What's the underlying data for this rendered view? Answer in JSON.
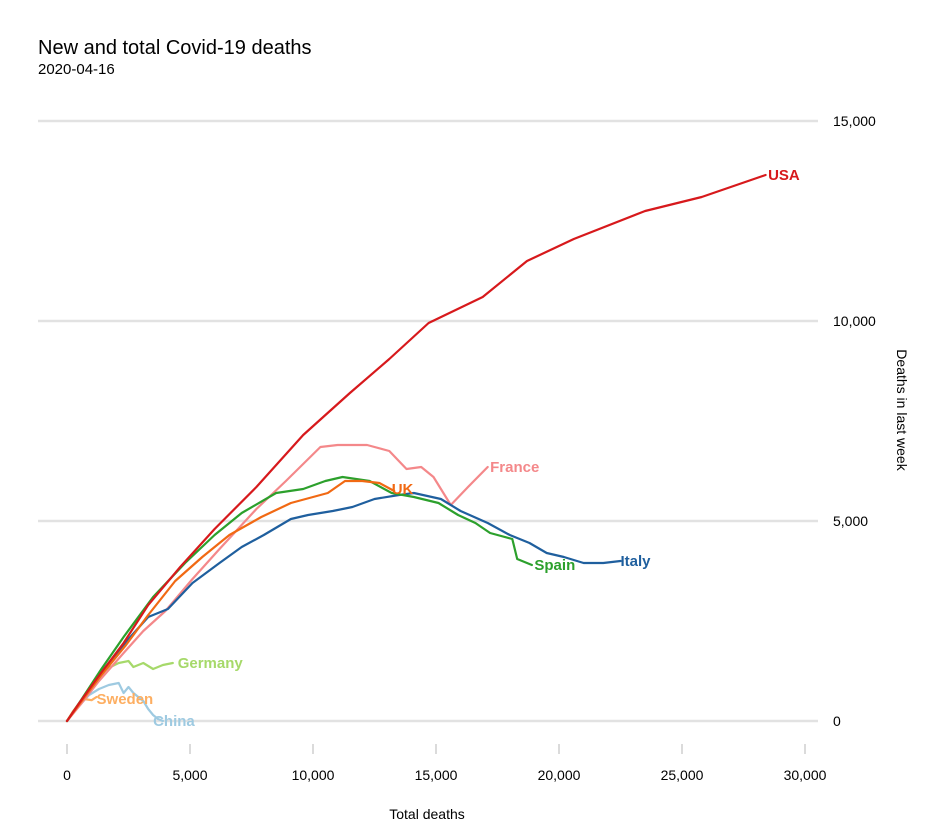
{
  "chart_data": {
    "type": "line",
    "title": "New and total Covid-19 deaths",
    "subtitle": "2020-04-16",
    "xlabel": "Total deaths",
    "ylabel": "Deaths in last week",
    "xlim": [
      -1200,
      30500
    ],
    "ylim": [
      -300,
      15000
    ],
    "x_ticks": [
      0,
      5000,
      10000,
      15000,
      20000,
      25000,
      30000
    ],
    "x_tick_labels": [
      "0",
      "5,000",
      "10,000",
      "15,000",
      "20,000",
      "25,000",
      "30,000"
    ],
    "y_ticks": [
      0,
      5000,
      10000,
      15000
    ],
    "y_tick_labels": [
      "0",
      "5,000",
      "10,000",
      "15,000"
    ],
    "y_axis_side": "right",
    "grid": "horizontal",
    "legend": "direct-labels",
    "series": [
      {
        "name": "USA",
        "color": "#d7191c",
        "points": [
          [
            0,
            0
          ],
          [
            500,
            450
          ],
          [
            1200,
            1050
          ],
          [
            2300,
            1950
          ],
          [
            3300,
            2900
          ],
          [
            4600,
            3850
          ],
          [
            6000,
            4800
          ],
          [
            7700,
            5850
          ],
          [
            9600,
            7150
          ],
          [
            11500,
            8200
          ],
          [
            13100,
            9050
          ],
          [
            14700,
            9950
          ],
          [
            16900,
            10600
          ],
          [
            18700,
            11500
          ],
          [
            20600,
            12050
          ],
          [
            23500,
            12750
          ],
          [
            25800,
            13100
          ],
          [
            28400,
            13650
          ]
        ]
      },
      {
        "name": "France",
        "color": "#f4888a",
        "points": [
          [
            0,
            0
          ],
          [
            600,
            450
          ],
          [
            1300,
            1000
          ],
          [
            2300,
            1700
          ],
          [
            3100,
            2250
          ],
          [
            4000,
            2750
          ],
          [
            5100,
            3550
          ],
          [
            6200,
            4300
          ],
          [
            7700,
            5300
          ],
          [
            8900,
            6000
          ],
          [
            10300,
            6850
          ],
          [
            11000,
            6900
          ],
          [
            12200,
            6900
          ],
          [
            13100,
            6750
          ],
          [
            13800,
            6300
          ],
          [
            14400,
            6350
          ],
          [
            14900,
            6100
          ],
          [
            15600,
            5400
          ],
          [
            16300,
            5850
          ],
          [
            17100,
            6350
          ]
        ]
      },
      {
        "name": "UK",
        "color": "#f16913",
        "points": [
          [
            0,
            0
          ],
          [
            600,
            500
          ],
          [
            1400,
            1150
          ],
          [
            2400,
            1900
          ],
          [
            3300,
            2650
          ],
          [
            4400,
            3500
          ],
          [
            5500,
            4100
          ],
          [
            6600,
            4650
          ],
          [
            7900,
            5100
          ],
          [
            9100,
            5450
          ],
          [
            10600,
            5700
          ],
          [
            11300,
            6000
          ],
          [
            12000,
            6000
          ],
          [
            12700,
            5950
          ],
          [
            13300,
            5750
          ]
        ]
      },
      {
        "name": "Spain",
        "color": "#2ca02c",
        "points": [
          [
            0,
            0
          ],
          [
            600,
            550
          ],
          [
            1400,
            1300
          ],
          [
            2300,
            2100
          ],
          [
            3500,
            3100
          ],
          [
            4800,
            3950
          ],
          [
            6000,
            4650
          ],
          [
            7100,
            5200
          ],
          [
            8500,
            5700
          ],
          [
            9600,
            5800
          ],
          [
            10500,
            6000
          ],
          [
            11200,
            6100
          ],
          [
            12300,
            6000
          ],
          [
            13200,
            5700
          ],
          [
            14100,
            5600
          ],
          [
            15100,
            5450
          ],
          [
            15900,
            5150
          ],
          [
            16600,
            4950
          ],
          [
            17200,
            4700
          ],
          [
            18100,
            4550
          ],
          [
            18300,
            4050
          ],
          [
            18900,
            3900
          ]
        ]
      },
      {
        "name": "Italy",
        "color": "#1f5f9e",
        "points": [
          [
            0,
            0
          ],
          [
            700,
            600
          ],
          [
            1500,
            1300
          ],
          [
            2500,
            2050
          ],
          [
            3300,
            2600
          ],
          [
            4100,
            2800
          ],
          [
            5100,
            3450
          ],
          [
            6200,
            3950
          ],
          [
            7100,
            4350
          ],
          [
            8000,
            4650
          ],
          [
            9100,
            5050
          ],
          [
            9800,
            5150
          ],
          [
            10800,
            5250
          ],
          [
            11600,
            5350
          ],
          [
            12500,
            5550
          ],
          [
            13500,
            5650
          ],
          [
            14100,
            5700
          ],
          [
            15200,
            5550
          ],
          [
            16000,
            5250
          ],
          [
            17100,
            4950
          ],
          [
            18000,
            4650
          ],
          [
            18800,
            4450
          ],
          [
            19500,
            4200
          ],
          [
            20200,
            4100
          ],
          [
            21000,
            3950
          ],
          [
            21800,
            3950
          ],
          [
            22500,
            4000
          ]
        ]
      },
      {
        "name": "Germany",
        "color": "#a6d96a",
        "points": [
          [
            0,
            0
          ],
          [
            500,
            400
          ],
          [
            900,
            800
          ],
          [
            1200,
            1000
          ],
          [
            1600,
            1300
          ],
          [
            2100,
            1450
          ],
          [
            2500,
            1500
          ],
          [
            2700,
            1350
          ],
          [
            3100,
            1450
          ],
          [
            3500,
            1300
          ],
          [
            3900,
            1400
          ],
          [
            4300,
            1450
          ]
        ]
      },
      {
        "name": "Sweden",
        "color": "#fdae61",
        "points": [
          [
            0,
            0
          ],
          [
            250,
            250
          ],
          [
            500,
            450
          ],
          [
            700,
            550
          ],
          [
            1000,
            520
          ],
          [
            1200,
            600
          ]
        ]
      },
      {
        "name": "China",
        "color": "#9ecae1",
        "points": [
          [
            0,
            0
          ],
          [
            400,
            320
          ],
          [
            900,
            650
          ],
          [
            1300,
            800
          ],
          [
            1700,
            900
          ],
          [
            2100,
            950
          ],
          [
            2300,
            700
          ],
          [
            2500,
            850
          ],
          [
            2700,
            700
          ],
          [
            2900,
            600
          ],
          [
            3100,
            500
          ],
          [
            3300,
            300
          ],
          [
            3500,
            150
          ],
          [
            3700,
            50
          ],
          [
            3900,
            0
          ]
        ]
      }
    ],
    "labels": [
      {
        "text": "USA",
        "x": 28500,
        "y": 13650,
        "color": "#d7191c"
      },
      {
        "text": "France",
        "x": 17200,
        "y": 6350,
        "color": "#f4888a"
      },
      {
        "text": "UK",
        "x": 13200,
        "y": 5800,
        "color": "#f16913"
      },
      {
        "text": "Spain",
        "x": 19000,
        "y": 3900,
        "color": "#2ca02c"
      },
      {
        "text": "Italy",
        "x": 22500,
        "y": 4000,
        "color": "#1f5f9e"
      },
      {
        "text": "Germany",
        "x": 4500,
        "y": 1450,
        "color": "#a6d96a"
      },
      {
        "text": "Sweden",
        "x": 1200,
        "y": 550,
        "color": "#fdae61"
      },
      {
        "text": "China",
        "x": 3500,
        "y": 0,
        "color": "#9ecae1"
      }
    ]
  }
}
